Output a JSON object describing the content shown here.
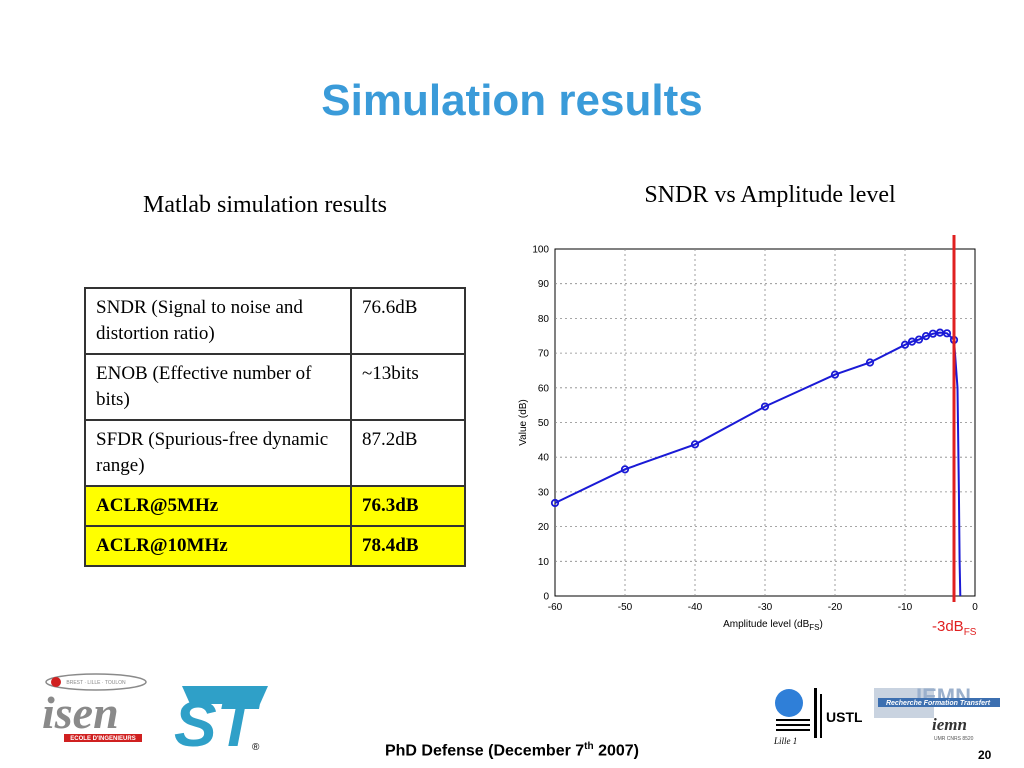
{
  "slide": {
    "title": "Simulation results",
    "left_caption": "Matlab simulation results",
    "right_caption": "SNDR vs Amplitude level",
    "footer_prefix": "PhD Defense (December 7",
    "footer_sup": "th",
    "footer_suffix": " 2007)",
    "page_number": "20"
  },
  "table": {
    "rows": [
      {
        "label": "SNDR (Signal to noise and distortion ratio)",
        "value": "76.6dB",
        "highlight": false
      },
      {
        "label": "ENOB (Effective number of bits)",
        "value": "~13bits",
        "highlight": false
      },
      {
        "label": "SFDR (Spurious-free dynamic range)",
        "value": "87.2dB",
        "highlight": false
      },
      {
        "label": "ACLR@5MHz",
        "value": "76.3dB",
        "highlight": true
      },
      {
        "label": "ACLR@10MHz",
        "value": "78.4dB",
        "highlight": true
      }
    ],
    "highlight_color": "#ffff00"
  },
  "logos": {
    "isen_text": "isen",
    "isen_tagline": "ECOLE D'INGENIEURS",
    "isen_cities": "BREST · LILLE · TOULON",
    "st_text": "ST",
    "st_mark": "®",
    "ustl_text": "USTL",
    "lille_text": "Lille 1",
    "iemn_text": "IEMN",
    "iemn_banner": "Recherche Formation Transfert",
    "iemn_sub": "iemn",
    "iemn_code": "UMR CNRS 8520"
  },
  "chart_data": {
    "type": "line",
    "xlabel": "Amplitude level (dB",
    "xlabel_sub": "FS",
    "xlabel_tail": ")",
    "ylabel": "Value (dB)",
    "xlim": [
      -60,
      0
    ],
    "ylim": [
      0,
      100
    ],
    "xticks": [
      -60,
      -50,
      -40,
      -30,
      -20,
      -10,
      0
    ],
    "yticks": [
      0,
      10,
      20,
      30,
      40,
      50,
      60,
      70,
      80,
      90,
      100
    ],
    "grid": true,
    "line_color": "#1a1ad6",
    "marker_color": "#1a1ad6",
    "series": [
      {
        "x": [
          -60,
          -50,
          -40,
          -30,
          -20,
          -15,
          -10,
          -9,
          -8,
          -7,
          -6,
          -5,
          -4,
          -3,
          -2.5,
          -2.3,
          -2.2,
          -2.1
        ],
        "y": [
          26.8,
          36.5,
          43.7,
          54.6,
          63.8,
          67.3,
          72.4,
          73.3,
          73.9,
          74.9,
          75.6,
          75.9,
          75.7,
          73.8,
          60,
          30,
          10,
          0
        ],
        "markers": [
          true,
          true,
          true,
          true,
          true,
          true,
          true,
          true,
          true,
          true,
          true,
          true,
          true,
          true,
          false,
          false,
          false,
          false
        ]
      }
    ],
    "annotation": {
      "text": "-3dB",
      "sub": "FS",
      "x": -3,
      "color": "#e02020"
    }
  }
}
